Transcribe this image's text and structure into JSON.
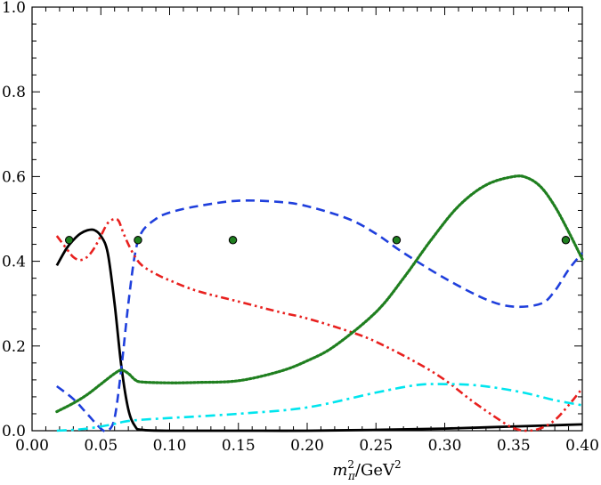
{
  "chart_data": {
    "type": "line",
    "title": "",
    "xlabel": {
      "base": "m",
      "sup": "2",
      "sub": "π",
      "slash": "/GeV",
      "unit_sup": "2"
    },
    "ylabel": "",
    "xlim": [
      0.0,
      0.4
    ],
    "ylim": [
      0.0,
      1.0
    ],
    "xticks": [
      "0.00",
      "0.05",
      "0.10",
      "0.15",
      "0.20",
      "0.25",
      "0.30",
      "0.35",
      "0.40"
    ],
    "yticks": [
      "0.0",
      "0.2",
      "0.4",
      "0.6",
      "0.8",
      "1.0"
    ],
    "grid": false,
    "legend": "none",
    "series": [
      {
        "color": "#000000",
        "style": "solid",
        "x": [
          0.018,
          0.025,
          0.03,
          0.035,
          0.04,
          0.045,
          0.05,
          0.055,
          0.06,
          0.065,
          0.07,
          0.075,
          0.08,
          0.1,
          0.15,
          0.2,
          0.25,
          0.3,
          0.35,
          0.4
        ],
        "y": [
          0.39,
          0.43,
          0.45,
          0.465,
          0.473,
          0.474,
          0.46,
          0.42,
          0.3,
          0.15,
          0.05,
          0.01,
          0.002,
          0.0,
          0.0,
          0.0,
          0.002,
          0.005,
          0.01,
          0.015
        ]
      },
      {
        "color": "#1f3fdc",
        "style": "dashed",
        "x": [
          0.018,
          0.03,
          0.04,
          0.05,
          0.055,
          0.06,
          0.065,
          0.07,
          0.075,
          0.08,
          0.09,
          0.1,
          0.12,
          0.15,
          0.18,
          0.2,
          0.23,
          0.25,
          0.27,
          0.3,
          0.33,
          0.35,
          0.37,
          0.38,
          0.39,
          0.4
        ],
        "y": [
          0.105,
          0.075,
          0.04,
          0.005,
          0.0,
          0.03,
          0.15,
          0.3,
          0.42,
          0.47,
          0.5,
          0.515,
          0.53,
          0.543,
          0.54,
          0.53,
          0.5,
          0.465,
          0.42,
          0.36,
          0.31,
          0.293,
          0.3,
          0.33,
          0.38,
          0.42
        ]
      },
      {
        "color": "#e8201e",
        "style": "dashdotdot",
        "x": [
          0.018,
          0.025,
          0.03,
          0.035,
          0.04,
          0.045,
          0.05,
          0.055,
          0.06,
          0.063,
          0.066,
          0.07,
          0.075,
          0.08,
          0.09,
          0.1,
          0.12,
          0.15,
          0.18,
          0.2,
          0.23,
          0.25,
          0.28,
          0.3,
          0.32,
          0.34,
          0.35,
          0.36,
          0.37,
          0.38,
          0.39,
          0.4
        ],
        "y": [
          0.46,
          0.43,
          0.41,
          0.403,
          0.41,
          0.43,
          0.46,
          0.49,
          0.5,
          0.495,
          0.47,
          0.44,
          0.41,
          0.39,
          0.37,
          0.355,
          0.33,
          0.305,
          0.28,
          0.265,
          0.235,
          0.21,
          0.16,
          0.12,
          0.07,
          0.025,
          0.006,
          0.0,
          0.006,
          0.025,
          0.06,
          0.1
        ]
      },
      {
        "color": "#1f7f1f",
        "style": "dotted",
        "x": [
          0.018,
          0.03,
          0.04,
          0.05,
          0.06,
          0.065,
          0.07,
          0.075,
          0.08,
          0.1,
          0.12,
          0.15,
          0.18,
          0.2,
          0.22,
          0.25,
          0.27,
          0.29,
          0.31,
          0.33,
          0.35,
          0.36,
          0.37,
          0.38,
          0.39,
          0.4
        ],
        "y": [
          0.045,
          0.065,
          0.085,
          0.11,
          0.135,
          0.143,
          0.135,
          0.12,
          0.115,
          0.113,
          0.114,
          0.118,
          0.14,
          0.165,
          0.2,
          0.28,
          0.36,
          0.45,
          0.53,
          0.58,
          0.6,
          0.597,
          0.575,
          0.53,
          0.47,
          0.405
        ]
      },
      {
        "color": "#00e5ee",
        "style": "dashdot",
        "x": [
          0.018,
          0.03,
          0.04,
          0.05,
          0.06,
          0.065,
          0.07,
          0.08,
          0.1,
          0.15,
          0.2,
          0.25,
          0.28,
          0.3,
          0.32,
          0.34,
          0.36,
          0.38,
          0.4
        ],
        "y": [
          0.0,
          0.002,
          0.005,
          0.01,
          0.016,
          0.02,
          0.023,
          0.026,
          0.03,
          0.04,
          0.055,
          0.09,
          0.108,
          0.11,
          0.108,
          0.1,
          0.088,
          0.072,
          0.06
        ]
      }
    ],
    "points": {
      "color": "#1f7f1f",
      "x": [
        0.027,
        0.077,
        0.146,
        0.265,
        0.388
      ],
      "y": [
        0.45,
        0.45,
        0.45,
        0.45,
        0.45
      ]
    }
  }
}
